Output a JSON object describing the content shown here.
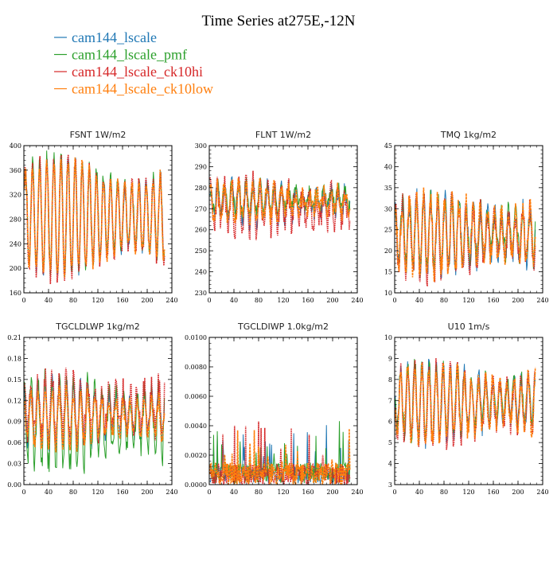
{
  "figure": {
    "title": "Time Series at275E,-12N"
  },
  "legend": [
    {
      "name": "cam144_lscale",
      "color": "#1f77b4"
    },
    {
      "name": "cam144_lscale_pmf",
      "color": "#2ca02c"
    },
    {
      "name": "cam144_lscale_ck10hi",
      "color": "#d62728"
    },
    {
      "name": "cam144_lscale_ck10low",
      "color": "#ff7f0e"
    }
  ],
  "chart_data": [
    {
      "type": "line",
      "title": "FSNT   1W/m2",
      "xlim": [
        0,
        240
      ],
      "ylim": [
        160,
        400
      ],
      "xticks": [
        0,
        40,
        80,
        120,
        160,
        200,
        240
      ],
      "yticks": [
        "160",
        "200",
        "240",
        "280",
        "320",
        "360",
        "400"
      ],
      "n_points": 228,
      "series": [
        {
          "name": "cam144_lscale",
          "center": 285,
          "amp": 85,
          "noise": 12,
          "seed": 11
        },
        {
          "name": "cam144_lscale_pmf",
          "center": 287,
          "amp": 88,
          "noise": 14,
          "seed": 12
        },
        {
          "name": "cam144_lscale_ck10hi",
          "center": 283,
          "amp": 90,
          "noise": 13,
          "seed": 13
        },
        {
          "name": "cam144_lscale_ck10low",
          "center": 284,
          "amp": 86,
          "noise": 12,
          "seed": 14
        }
      ]
    },
    {
      "type": "line",
      "title": "FLNT   1W/m2",
      "xlim": [
        0,
        240
      ],
      "ylim": [
        230,
        300
      ],
      "xticks": [
        0,
        40,
        80,
        120,
        160,
        200,
        240
      ],
      "yticks": [
        "230",
        "240",
        "250",
        "260",
        "270",
        "280",
        "290",
        "300"
      ],
      "n_points": 228,
      "series": [
        {
          "name": "cam144_lscale",
          "center": 273,
          "amp": 8,
          "noise": 5,
          "seed": 21
        },
        {
          "name": "cam144_lscale_pmf",
          "center": 275,
          "amp": 6,
          "noise": 4,
          "seed": 22
        },
        {
          "name": "cam144_lscale_ck10hi",
          "center": 271,
          "amp": 10,
          "noise": 7,
          "seed": 23
        },
        {
          "name": "cam144_lscale_ck10low",
          "center": 273,
          "amp": 7,
          "noise": 5,
          "seed": 24
        }
      ]
    },
    {
      "type": "line",
      "title": "TMQ   1kg/m2",
      "xlim": [
        0,
        240
      ],
      "ylim": [
        10,
        45
      ],
      "xticks": [
        0,
        40,
        80,
        120,
        160,
        200,
        240
      ],
      "yticks": [
        "10",
        "15",
        "20",
        "25",
        "30",
        "35",
        "40",
        "45"
      ],
      "n_points": 228,
      "series": [
        {
          "name": "cam144_lscale",
          "center": 24,
          "amp": 8,
          "noise": 3,
          "seed": 31
        },
        {
          "name": "cam144_lscale_pmf",
          "center": 24.5,
          "amp": 8,
          "noise": 3,
          "seed": 32
        },
        {
          "name": "cam144_lscale_ck10hi",
          "center": 23.5,
          "amp": 8.5,
          "noise": 3,
          "seed": 33
        },
        {
          "name": "cam144_lscale_ck10low",
          "center": 24,
          "amp": 8,
          "noise": 3,
          "seed": 34
        }
      ]
    },
    {
      "type": "line",
      "title": "TGCLDLWP   1kg/m2",
      "xlim": [
        0,
        240
      ],
      "ylim": [
        0,
        0.21
      ],
      "xticks": [
        0,
        40,
        80,
        120,
        160,
        200,
        240
      ],
      "yticks": [
        "0.00",
        "0.03",
        "0.06",
        "0.09",
        "0.12",
        "0.15",
        "0.18",
        "0.21"
      ],
      "n_points": 228,
      "series": [
        {
          "name": "cam144_lscale",
          "center": 0.1,
          "amp": 0.04,
          "noise": 0.015,
          "seed": 41
        },
        {
          "name": "cam144_lscale_pmf",
          "center": 0.09,
          "amp": 0.06,
          "noise": 0.02,
          "seed": 42
        },
        {
          "name": "cam144_lscale_ck10hi",
          "center": 0.11,
          "amp": 0.04,
          "noise": 0.02,
          "seed": 43
        },
        {
          "name": "cam144_lscale_ck10low",
          "center": 0.095,
          "amp": 0.035,
          "noise": 0.012,
          "seed": 44
        }
      ]
    },
    {
      "type": "line",
      "title": "TGCLDIWP   1.0kg/m2",
      "xlim": [
        0,
        240
      ],
      "ylim": [
        0,
        0.01
      ],
      "xticks": [
        0,
        40,
        80,
        120,
        160,
        200,
        240
      ],
      "yticks": [
        "0.0000",
        "0.0020",
        "0.0040",
        "0.0060",
        "0.0080",
        "0.0100"
      ],
      "n_points": 228,
      "series": [
        {
          "name": "cam144_lscale",
          "center": 0.0007,
          "amp": 0.0008,
          "noise": 0.0012,
          "seed": 51,
          "spiky": true
        },
        {
          "name": "cam144_lscale_pmf",
          "center": 0.0008,
          "amp": 0.0008,
          "noise": 0.0014,
          "seed": 52,
          "spiky": true
        },
        {
          "name": "cam144_lscale_ck10hi",
          "center": 0.0007,
          "amp": 0.0008,
          "noise": 0.0014,
          "seed": 53,
          "spiky": true
        },
        {
          "name": "cam144_lscale_ck10low",
          "center": 0.0007,
          "amp": 0.0008,
          "noise": 0.0016,
          "seed": 54,
          "spiky": true
        }
      ]
    },
    {
      "type": "line",
      "title": "U10   1m/s",
      "xlim": [
        0,
        240
      ],
      "ylim": [
        3,
        10
      ],
      "xticks": [
        0,
        40,
        80,
        120,
        160,
        200,
        240
      ],
      "yticks": [
        "3",
        "4",
        "5",
        "6",
        "7",
        "8",
        "9",
        "10"
      ],
      "n_points": 228,
      "series": [
        {
          "name": "cam144_lscale",
          "center": 6.9,
          "amp": 1.6,
          "noise": 0.5,
          "seed": 61
        },
        {
          "name": "cam144_lscale_pmf",
          "center": 7.0,
          "amp": 1.6,
          "noise": 0.5,
          "seed": 62
        },
        {
          "name": "cam144_lscale_ck10hi",
          "center": 6.8,
          "amp": 1.7,
          "noise": 0.5,
          "seed": 63
        },
        {
          "name": "cam144_lscale_ck10low",
          "center": 6.9,
          "amp": 1.6,
          "noise": 0.5,
          "seed": 64
        }
      ]
    }
  ]
}
